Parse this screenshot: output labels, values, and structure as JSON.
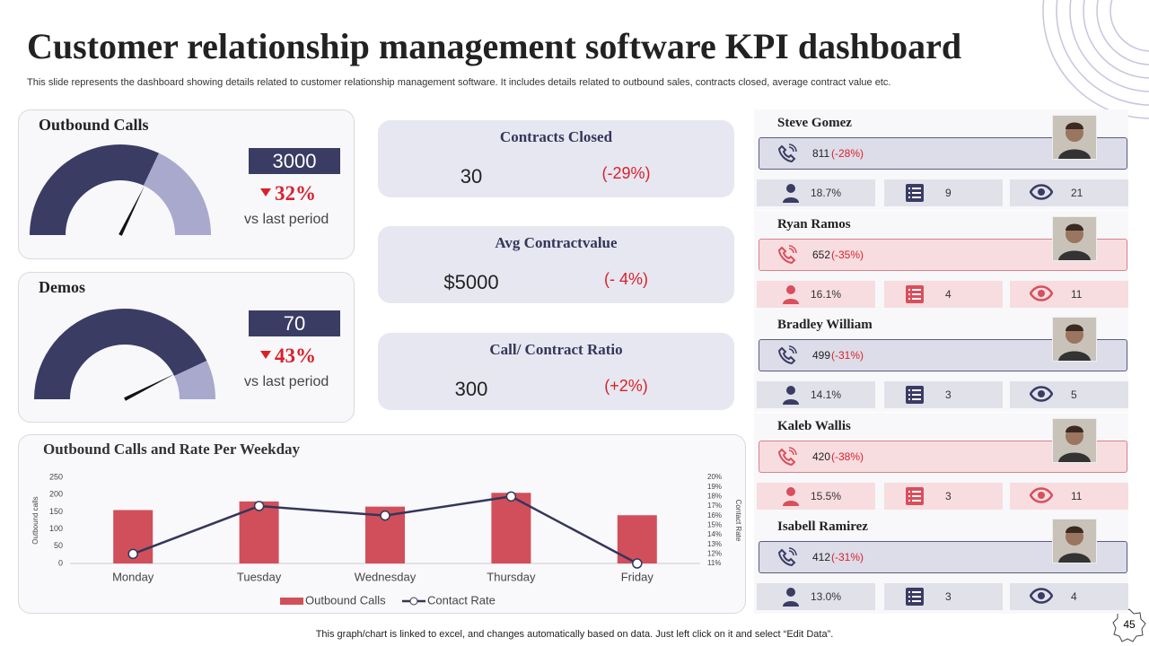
{
  "header": {
    "title": "Customer relationship management software KPI dashboard",
    "subtitle": "This slide represents the dashboard showing details related to customer relationship management software. It includes details related to outbound sales, contracts closed, average contract value etc."
  },
  "gauges": [
    {
      "title": "Outbound Calls",
      "value": "3000",
      "change": "32%",
      "note": "vs last period"
    },
    {
      "title": "Demos",
      "value": "70",
      "change": "43%",
      "note": "vs last period"
    }
  ],
  "kpis": [
    {
      "title": "Contracts Closed",
      "value": "30",
      "change": "(-29%)"
    },
    {
      "title": "Avg Contractvalue",
      "value": "$5000",
      "change": "(- 4%)"
    },
    {
      "title": "Call/ Contract Ratio",
      "value": "300",
      "change": "(+2%)"
    }
  ],
  "people": [
    {
      "name": "Steve Gomez",
      "calls": "811",
      "change": "(-28%)",
      "share": "18.7%",
      "lists": "9",
      "views": "21"
    },
    {
      "name": "Ryan Ramos",
      "calls": "652",
      "change": "(-35%)",
      "share": "16.1%",
      "lists": "4",
      "views": "11"
    },
    {
      "name": "Bradley William",
      "calls": "499",
      "change": "(-31%)",
      "share": "14.1%",
      "lists": "3",
      "views": "5"
    },
    {
      "name": "Kaleb Wallis",
      "calls": "420",
      "change": "(-38%)",
      "share": "15.5%",
      "lists": "3",
      "views": "11"
    },
    {
      "name": "Isabell Ramirez",
      "calls": "412",
      "change": "(-31%)",
      "share": "13.0%",
      "lists": "3",
      "views": "4"
    }
  ],
  "chart_data": {
    "type": "bar-line",
    "title": "Outbound Calls and Rate Per Weekday",
    "categories": [
      "Monday",
      "Tuesday",
      "Wednesday",
      "Thursday",
      "Friday"
    ],
    "series": [
      {
        "name": "Outbound Calls",
        "color": "#d14f5b",
        "type": "bar",
        "values": [
          155,
          180,
          165,
          205,
          140
        ]
      },
      {
        "name": "Contact Rate",
        "color": "#34365a",
        "type": "line",
        "axis": "y2",
        "values": [
          12,
          17,
          16,
          18,
          11
        ]
      }
    ],
    "ylabel": "Outbound calls",
    "y2label": "Contact Rate",
    "ylim": [
      0,
      250
    ],
    "yticks": [
      0,
      50,
      100,
      150,
      200,
      250
    ],
    "y2lim": [
      11,
      20
    ],
    "y2ticks": [
      {
        "value": 11,
        "label": "11%"
      },
      {
        "value": 12,
        "label": "12%"
      },
      {
        "value": 13,
        "label": "13%"
      },
      {
        "value": 14,
        "label": "14%"
      },
      {
        "value": 15,
        "label": "15%"
      },
      {
        "value": 16,
        "label": "16%"
      },
      {
        "value": 17,
        "label": "17%"
      },
      {
        "value": 18,
        "label": "18%"
      },
      {
        "value": 19,
        "label": "19%"
      },
      {
        "value": 20,
        "label": "20%"
      }
    ],
    "legend": "bottom"
  },
  "footer": "This graph/chart is linked to excel, and changes automatically based on data. Just left click on it and select “Edit Data”.",
  "page_number": "45"
}
